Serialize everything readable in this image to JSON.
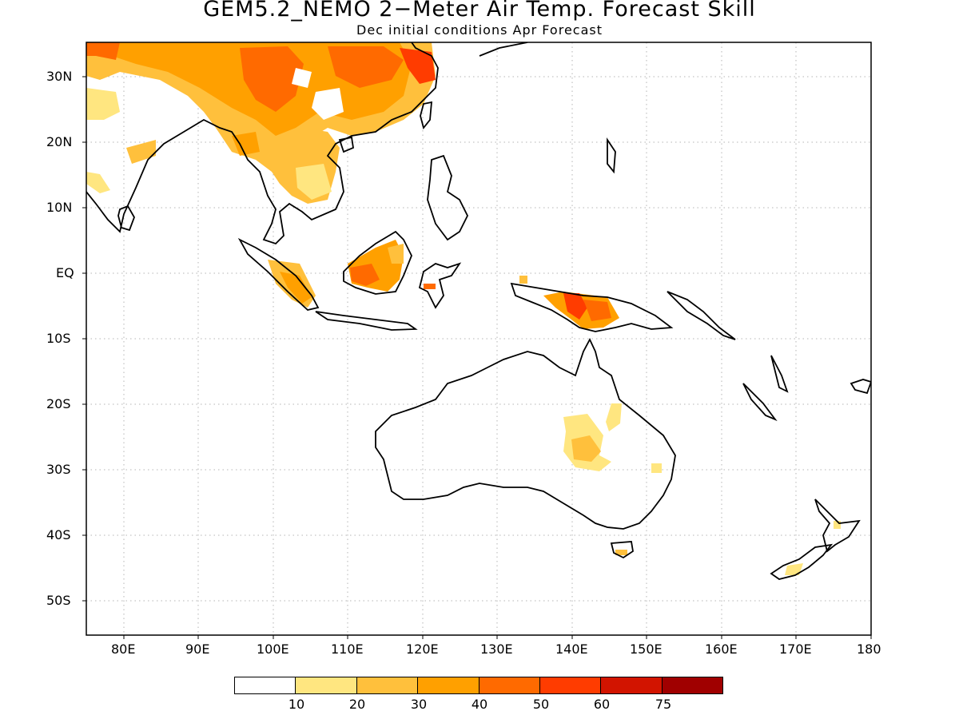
{
  "title": "GEM5.2_NEMO 2−Meter Air Temp. Forecast Skill",
  "subtitle": "Dec initial conditions  Apr Forecast",
  "map": {
    "lon_range": [
      75,
      180
    ],
    "lat_range": [
      -55,
      35
    ],
    "x_ticks": [
      "80E",
      "90E",
      "100E",
      "110E",
      "120E",
      "130E",
      "140E",
      "150E",
      "160E",
      "170E",
      "180"
    ],
    "y_ticks": [
      "30N",
      "20N",
      "10N",
      "EQ",
      "10S",
      "20S",
      "30S",
      "40S",
      "50S"
    ],
    "grid": "dotted"
  },
  "colorbar": {
    "colors": [
      "#ffffff",
      "#ffe680",
      "#ffc03c",
      "#ffa000",
      "#ff6a00",
      "#ff3c00",
      "#d21400",
      "#a00000"
    ],
    "labels": [
      "10",
      "20",
      "30",
      "40",
      "50",
      "60",
      "75"
    ]
  }
}
